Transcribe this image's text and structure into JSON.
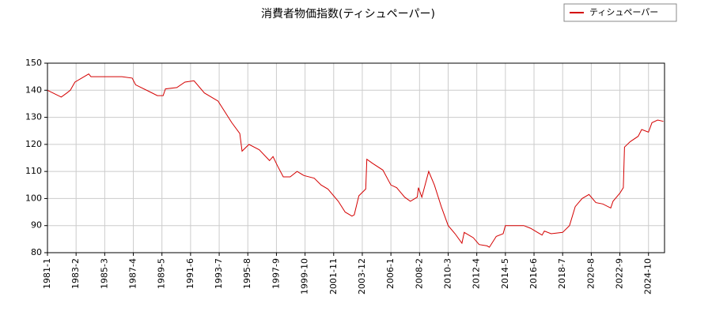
{
  "chart_data": {
    "type": "line",
    "title": "消費者物価指数(ティシュペーパー)",
    "series": [
      {
        "name": "ティシュペーパー",
        "color": "#d40000",
        "x": [
          "1981-1",
          "1982-1",
          "1982-6",
          "1982-9",
          "1983-1",
          "1984-1",
          "1984-3",
          "1985-3",
          "1986-6",
          "1987-3",
          "1987-6",
          "1988-6",
          "1989-1",
          "1989-6",
          "1989-8",
          "1990-6",
          "1991-1",
          "1991-9",
          "1992-6",
          "1993-6",
          "1994-6",
          "1995-1",
          "1995-3",
          "1995-9",
          "1996-6",
          "1997-3",
          "1997-6",
          "1997-10",
          "1998-3",
          "1998-9",
          "1999-3",
          "1999-9",
          "2000-6",
          "2000-12",
          "2001-6",
          "2002-3",
          "2002-9",
          "2003-3",
          "2003-5",
          "2003-9",
          "2004-3",
          "2004-4",
          "2004-9",
          "2005-6",
          "2006-1",
          "2006-6",
          "2007-1",
          "2007-6",
          "2007-12",
          "2008-1",
          "2008-4",
          "2008-10",
          "2009-3",
          "2009-9",
          "2010-3",
          "2010-9",
          "2011-3",
          "2011-5",
          "2012-1",
          "2012-6",
          "2013-1",
          "2013-3",
          "2013-9",
          "2014-3",
          "2014-5",
          "2015-1",
          "2015-9",
          "2016-3",
          "2016-9",
          "2017-1",
          "2017-3",
          "2017-9",
          "2018-7",
          "2019-1",
          "2019-6",
          "2019-12",
          "2020-6",
          "2020-12",
          "2021-6",
          "2022-1",
          "2022-3",
          "2022-9",
          "2022-12",
          "2023-1",
          "2023-6",
          "2024-1",
          "2024-4",
          "2024-10",
          "2025-1",
          "2025-6",
          "2025-11"
        ],
        "values": [
          140,
          137.5,
          139,
          140,
          143,
          146,
          145,
          145,
          145,
          144.5,
          142,
          139.5,
          138,
          138,
          140.5,
          141,
          143,
          143.5,
          139,
          136,
          128,
          124,
          117.5,
          120,
          118,
          114,
          115.5,
          112,
          108,
          108,
          110,
          108.5,
          107.5,
          105,
          103.5,
          99,
          95,
          93.5,
          94,
          101,
          103.5,
          114.5,
          113,
          110.5,
          105,
          104,
          100.5,
          99,
          100.5,
          104,
          100.5,
          110,
          105,
          97,
          90,
          87,
          83.5,
          87.5,
          85.5,
          83,
          82.5,
          82,
          86,
          87,
          90,
          90,
          90,
          89,
          87.5,
          86.5,
          88,
          87,
          87.5,
          90,
          97,
          100,
          101.5,
          98.5,
          98,
          96.5,
          99,
          102,
          104,
          119,
          121,
          123,
          125.5,
          124.5,
          128,
          129,
          128.5
        ]
      }
    ],
    "xlim": [
      "1981-1",
      "2025-12"
    ],
    "xticks": [
      "1981-1",
      "1983-2",
      "1985-3",
      "1987-4",
      "1989-5",
      "1991-6",
      "1993-7",
      "1995-8",
      "1997-9",
      "1999-10",
      "2001-11",
      "2003-12",
      "2006-1",
      "2008-2",
      "2010-3",
      "2012-4",
      "2014-5",
      "2016-6",
      "2018-7",
      "2020-8",
      "2022-9",
      "2024-10"
    ],
    "ylim": [
      80,
      150
    ],
    "yticks": [
      80,
      90,
      100,
      110,
      120,
      130,
      140,
      150
    ],
    "grid": true,
    "legend": "upper right"
  }
}
